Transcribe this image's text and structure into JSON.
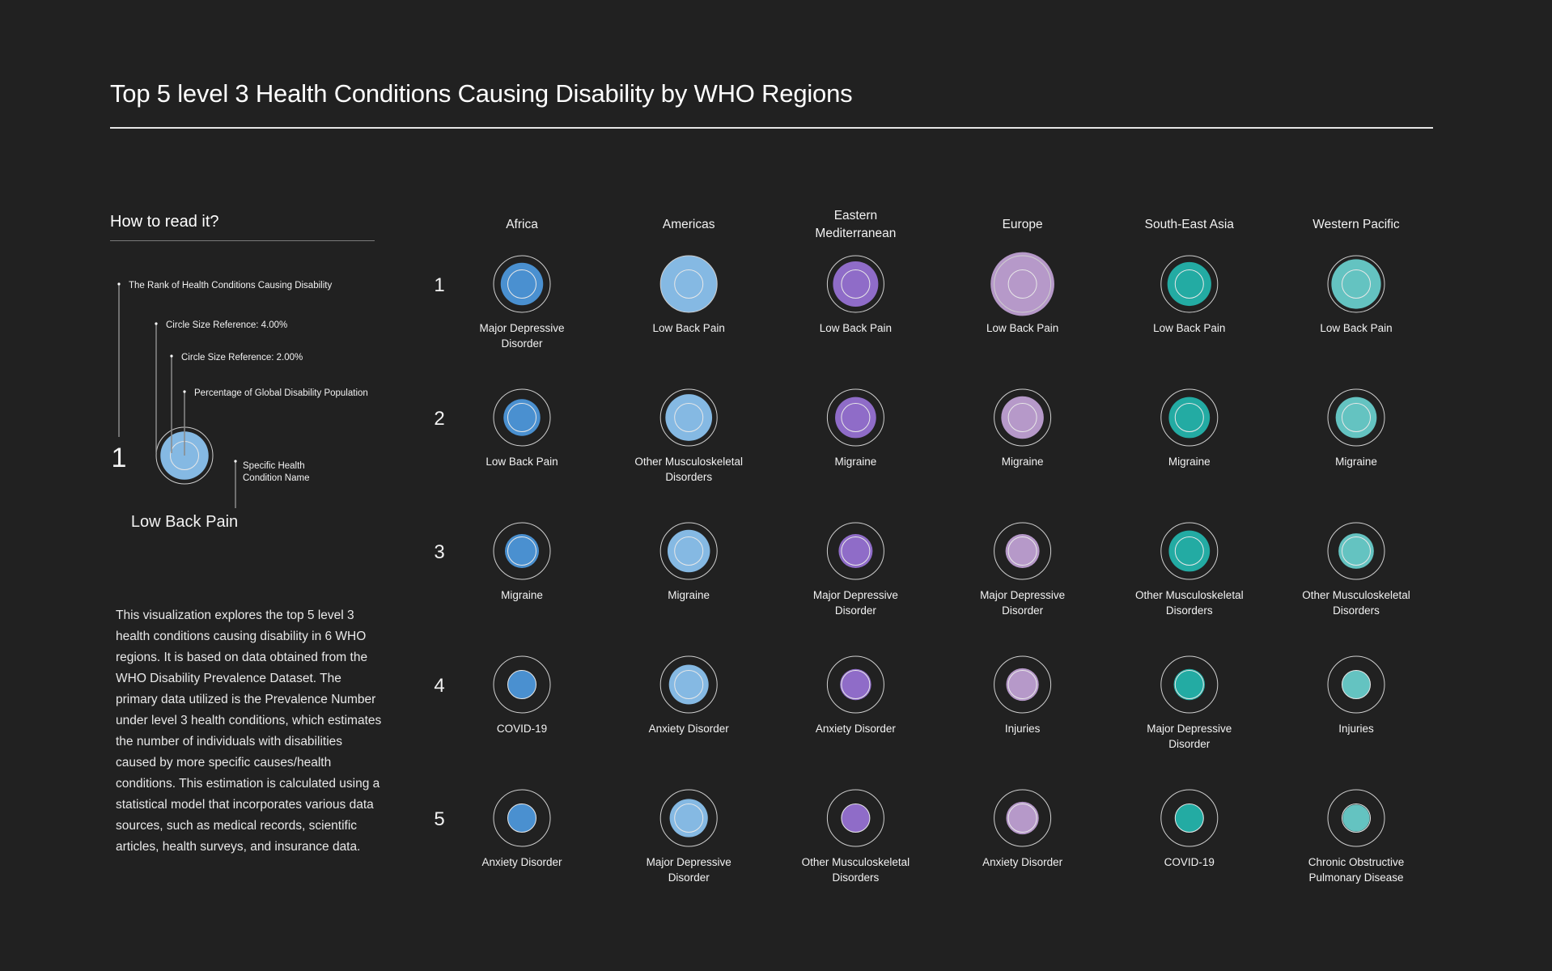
{
  "title": "Top 5 level 3 Health Conditions Causing Disability by WHO Regions",
  "legend": {
    "heading": "How to read it?",
    "rank_note": "The Rank of Health Conditions Causing Disability",
    "ref_outer_note": "Circle Size Reference: 4.00%",
    "ref_inner_note": "Circle Size Reference: 2.00%",
    "value_note": "Percentage of Global Disability Population",
    "name_note_line1": "Specific Health",
    "name_note_line2": "Condition Name",
    "example_rank": "1",
    "example_name": "Low Back Pain",
    "example_value": 3.4,
    "example_color": "#85b9e3"
  },
  "description": "This visualization explores the top 5 level 3 health conditions causing disability in 6 WHO regions. It is based on data obtained from the WHO Disability Prevalence Dataset. The primary data utilized is the Prevalence Number under level 3 health conditions, which estimates the number of individuals with disabilities caused by more specific causes/health conditions. This estimation is calculated using a statistical model that incorporates various data sources, such as medical records, scientific articles, health surveys, and insurance data.",
  "chart_data": {
    "type": "scatter",
    "title": "Top 5 level 3 Health Conditions Causing Disability by WHO Regions",
    "encoding": "circle size = percentage of global disability population (%)",
    "reference_values": [
      4.0,
      2.0
    ],
    "ranks": [
      "1",
      "2",
      "3",
      "4",
      "5"
    ],
    "regions": [
      {
        "name": [
          "Africa"
        ],
        "color": "#4a90d0",
        "conditions": [
          {
            "rank": 1,
            "name": [
              "Major Depressive",
              "Disorder"
            ],
            "value": 3.0
          },
          {
            "rank": 2,
            "name": [
              "Low Back Pain"
            ],
            "value": 2.6
          },
          {
            "rank": 3,
            "name": [
              "Migraine"
            ],
            "value": 2.4
          },
          {
            "rank": 4,
            "name": [
              "COVID-19"
            ],
            "value": 2.0
          },
          {
            "rank": 5,
            "name": [
              "Anxiety Disorder"
            ],
            "value": 2.0
          }
        ]
      },
      {
        "name": [
          "Americas"
        ],
        "color": "#85b9e3",
        "conditions": [
          {
            "rank": 1,
            "name": [
              "Low Back Pain"
            ],
            "value": 4.0
          },
          {
            "rank": 2,
            "name": [
              "Other Musculoskeletal",
              "Disorders"
            ],
            "value": 3.3
          },
          {
            "rank": 3,
            "name": [
              "Migraine"
            ],
            "value": 3.0
          },
          {
            "rank": 4,
            "name": [
              "Anxiety Disorder"
            ],
            "value": 2.8
          },
          {
            "rank": 5,
            "name": [
              "Major Depressive",
              "Disorder"
            ],
            "value": 2.7
          }
        ]
      },
      {
        "name": [
          "Eastern",
          "Mediterranean"
        ],
        "color": "#8f6cc8",
        "conditions": [
          {
            "rank": 1,
            "name": [
              "Low Back Pain"
            ],
            "value": 3.2
          },
          {
            "rank": 2,
            "name": [
              "Migraine"
            ],
            "value": 2.9
          },
          {
            "rank": 3,
            "name": [
              "Major Depressive",
              "Disorder"
            ],
            "value": 2.4
          },
          {
            "rank": 4,
            "name": [
              "Anxiety Disorder"
            ],
            "value": 2.2
          },
          {
            "rank": 5,
            "name": [
              "Other Musculoskeletal",
              "Disorders"
            ],
            "value": 2.0
          }
        ]
      },
      {
        "name": [
          "Europe"
        ],
        "color": "#b699c9",
        "conditions": [
          {
            "rank": 1,
            "name": [
              "Low Back Pain"
            ],
            "value": 4.5
          },
          {
            "rank": 2,
            "name": [
              "Migraine"
            ],
            "value": 3.0
          },
          {
            "rank": 3,
            "name": [
              "Major Depressive",
              "Disorder"
            ],
            "value": 2.4
          },
          {
            "rank": 4,
            "name": [
              "Injuries"
            ],
            "value": 2.3
          },
          {
            "rank": 5,
            "name": [
              "Anxiety Disorder"
            ],
            "value": 2.3
          }
        ]
      },
      {
        "name": [
          "South-East Asia"
        ],
        "color": "#23aba3",
        "conditions": [
          {
            "rank": 1,
            "name": [
              "Low Back Pain"
            ],
            "value": 3.1
          },
          {
            "rank": 2,
            "name": [
              "Migraine"
            ],
            "value": 2.9
          },
          {
            "rank": 3,
            "name": [
              "Other Musculoskeletal",
              "Disorders"
            ],
            "value": 2.9
          },
          {
            "rank": 4,
            "name": [
              "Major Depressive",
              "Disorder"
            ],
            "value": 2.2
          },
          {
            "rank": 5,
            "name": [
              "COVID-19"
            ],
            "value": 2.0
          }
        ]
      },
      {
        "name": [
          "Western Pacific"
        ],
        "color": "#64c3c1",
        "conditions": [
          {
            "rank": 1,
            "name": [
              "Low Back Pain"
            ],
            "value": 3.5
          },
          {
            "rank": 2,
            "name": [
              "Migraine"
            ],
            "value": 2.9
          },
          {
            "rank": 3,
            "name": [
              "Other Musculoskeletal",
              "Disorders"
            ],
            "value": 2.5
          },
          {
            "rank": 4,
            "name": [
              "Injuries"
            ],
            "value": 2.0
          },
          {
            "rank": 5,
            "name": [
              "Chronic Obstructive",
              "Pulmonary Disease"
            ],
            "value": 1.9
          }
        ]
      }
    ]
  }
}
